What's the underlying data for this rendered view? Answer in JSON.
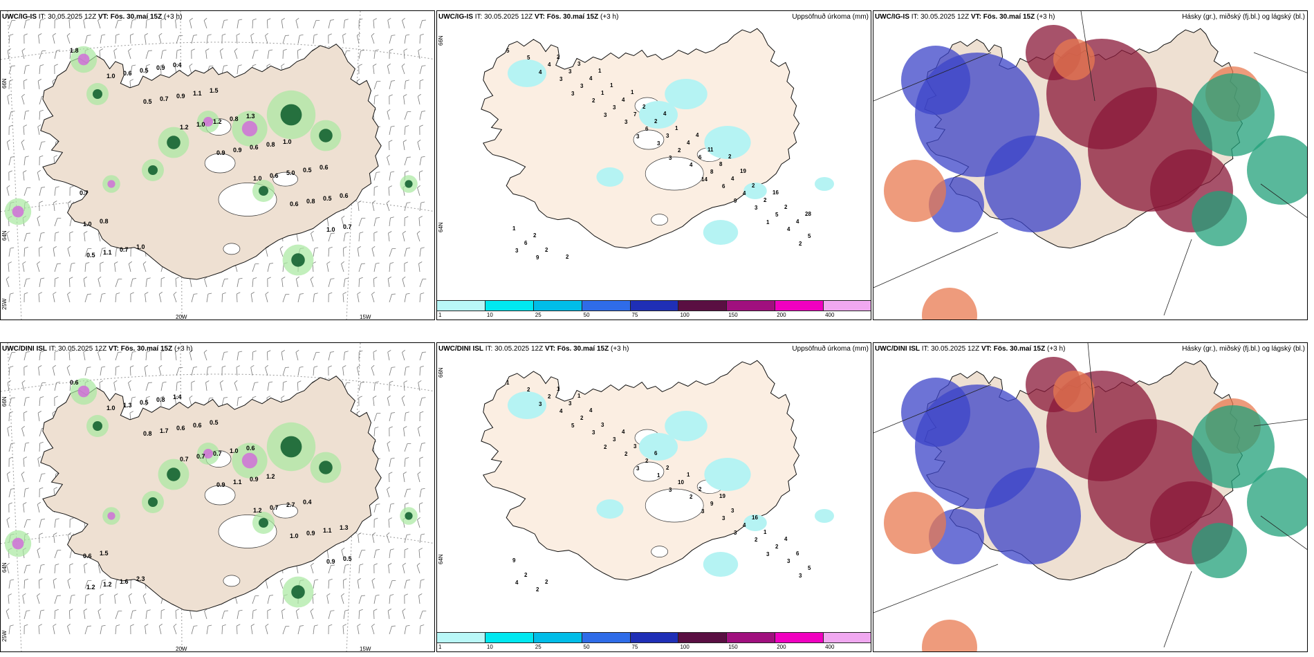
{
  "common": {
    "init_time": "IT: 30.05.2025 12Z",
    "valid_label": "VT: Fös. 30.maí 15Z",
    "lead": "(+3 h)"
  },
  "models": [
    "UWC/IG-IS",
    "UWC/DINI ISL"
  ],
  "titles": {
    "precip": "Uppsöfnuð úrkoma (mm)",
    "cloud": "Hásky (gr.), miðský (fj.bl.) og lágský (bl.)"
  },
  "axis_labels": {
    "lat_66": "66N",
    "lat_64": "64N",
    "lon_25": "25W",
    "lon_20": "20W",
    "lon_15": "15W"
  },
  "colorbar": {
    "ticks": [
      "1",
      "10",
      "25",
      "50",
      "75",
      "100",
      "150",
      "200",
      "400"
    ],
    "colors": [
      "#b9f7f7",
      "#00e8f0",
      "#00bde8",
      "#2f6ce8",
      "#1f2fb6",
      "#5a0f42",
      "#a0107e",
      "#f000c0",
      "#f0a8f0"
    ]
  },
  "map_colors": {
    "land": "#eee0d2",
    "land_light": "#fbeee2",
    "precip_light": "#b5f3f3",
    "high_cloud": "#8a1838",
    "mid_cloud": "#3c44c8",
    "low_cloud": "#22a07a",
    "orange": "#e87a50",
    "green_light": "#a8e8a0",
    "green_dark": "#0a5a2a",
    "violet": "#d070d8"
  },
  "igis_precip_values": [
    "5",
    "4",
    "3",
    "3",
    "3",
    "3",
    "14",
    "9",
    "1",
    "2",
    "5",
    "3",
    "2",
    "3",
    "3",
    "4",
    "6",
    "3",
    "4",
    "3",
    "4",
    "3",
    "3",
    "6",
    "2",
    "8",
    "4",
    "5",
    "5",
    "9",
    "3",
    "1",
    "7",
    "3",
    "6",
    "4",
    "2",
    "4",
    "6",
    "2",
    "4",
    "4",
    "2",
    "4",
    "8",
    "2",
    "2",
    "1",
    "2",
    "3",
    "1",
    "2",
    "1",
    "11",
    "19",
    "16",
    "28",
    "2",
    "2",
    "1",
    "1",
    "4",
    "4",
    "2"
  ],
  "dini_precip_values": [
    "1",
    "3",
    "5",
    "2",
    "3",
    "3",
    "3",
    "3",
    "3",
    "3",
    "2",
    "4",
    "3",
    "2",
    "1",
    "2",
    "3",
    "2",
    "3",
    "4",
    "2",
    "2",
    "3",
    "2",
    "10",
    "9",
    "4",
    "2",
    "5",
    "2",
    "3",
    "3",
    "3",
    "2",
    "2",
    "3",
    "1",
    "6",
    "2",
    "1",
    "4",
    "4",
    "6",
    "1",
    "19",
    "16",
    "4",
    "9",
    "2",
    "1"
  ],
  "igis_obs_values": [
    "1.8",
    "1.0",
    "0.5",
    "1.2",
    "0.9",
    "1.0",
    "0.6",
    "1.0",
    "0.5",
    "0.6",
    "0.7",
    "1.0",
    "0.9",
    "0.6",
    "0.8",
    "0.7",
    "1.1",
    "0.5",
    "0.9",
    "1.2",
    "0.6",
    "5.0",
    "0.5",
    "1.0",
    "0.7",
    "0.9",
    "1.1",
    "0.8",
    "0.8",
    "0.5",
    "0.6",
    "0.8",
    "1.0",
    "0.4",
    "1.5",
    "1.3",
    "1.0",
    "0.6",
    "0.7"
  ],
  "dini_obs_values": [
    "0.6",
    "1.0",
    "0.8",
    "0.7",
    "0.9",
    "1.2",
    "1.0",
    "0.9",
    "1.2",
    "1.3",
    "1.7",
    "0.7",
    "1.1",
    "0.7",
    "0.9",
    "0.5",
    "1.2",
    "0.5",
    "0.6",
    "0.7",
    "0.9",
    "2.7",
    "1.1",
    "0.6",
    "1.6",
    "0.8",
    "0.6",
    "1.0",
    "1.2",
    "0.4",
    "1.3",
    "1.5",
    "2.3",
    "1.4",
    "0.5",
    "0.6"
  ]
}
